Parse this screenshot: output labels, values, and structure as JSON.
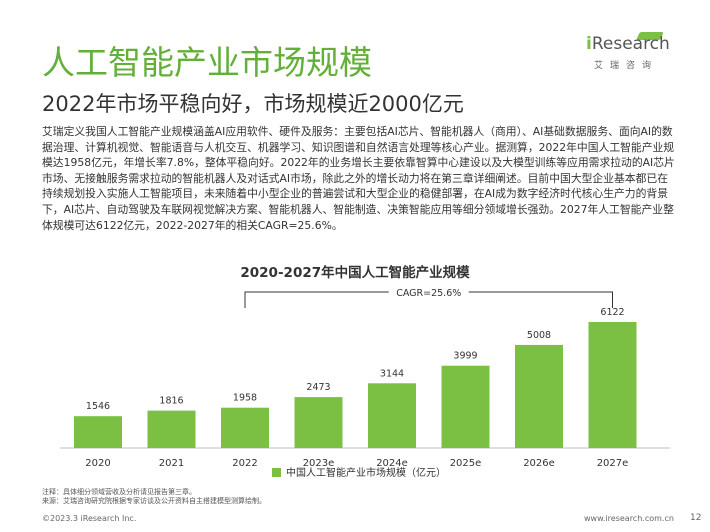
{
  "header": {
    "title": "人工智能产业市场规模",
    "subtitle": "2022年市场平稳向好，市场规模近2000亿元"
  },
  "logo": {
    "wordmark_i": "i",
    "wordmark_rest": "Research",
    "tagline": "艾瑞咨询",
    "accent_color": "#7bc043"
  },
  "body_text": "艾瑞定义我国人工智能产业规模涵盖AI应用软件、硬件及服务：主要包括AI芯片、智能机器人（商用）、AI基础数据服务、面向AI的数据治理、计算机视觉、智能语音与人机交互、机器学习、知识图谱和自然语言处理等核心产业。据测算，2022年中国人工智能产业规模达1958亿元，年增长率7.8%，整体平稳向好。2022年的业务增长主要依靠智算中心建设以及大模型训练等应用需求拉动的AI芯片市场、无接触服务需求拉动的智能机器人及对话式AI市场，除此之外的增长动力将在第三章详细阐述。目前中国大型企业基本都已在持续规划投入实施人工智能项目，未来随着中小型企业的普遍尝试和大型企业的稳健部署，在AI成为数字经济时代核心生产力的背景下，AI芯片、自动驾驶及车联网视觉解决方案、智能机器人、智能制造、决策智能应用等细分领域增长强劲。2027年人工智能产业整体规模可达6122亿元，2022-2027年的相关CAGR=25.6%。",
  "chart_data": {
    "type": "bar",
    "title": "2020-2027年中国人工智能产业规模",
    "categories": [
      "2020",
      "2021",
      "2022",
      "2023e",
      "2024e",
      "2025e",
      "2026e",
      "2027e"
    ],
    "series": [
      {
        "name": "中国人工智能产业市场规模（亿元）",
        "values": [
          1546,
          1816,
          1958,
          2473,
          3144,
          3999,
          5008,
          6122
        ],
        "color": "#7bc043"
      }
    ],
    "annotation": "CAGR=25.6%",
    "legend_position": "bottom",
    "grid": false
  },
  "notes": {
    "line1": "注释：具体细分领域营收及分析请见报告第三章。",
    "line2": "来源：艾瑞咨询研究院根据专家访谈及公开资料自主搭建模型测算绘制。"
  },
  "footer": {
    "copyright": "©2023.3 iResearch Inc.",
    "url": "www.iresearch.com.cn",
    "page": "12"
  }
}
